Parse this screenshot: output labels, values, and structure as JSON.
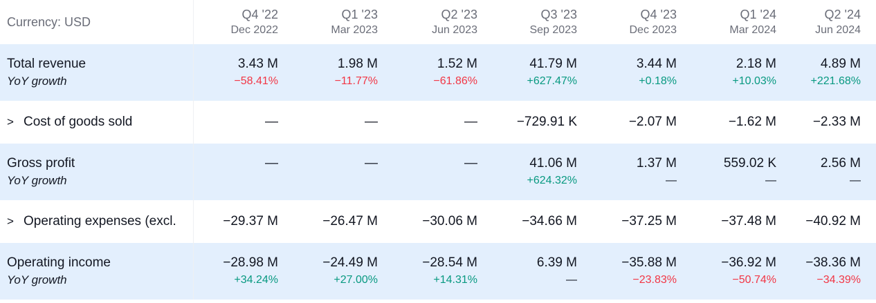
{
  "currency_label": "Currency: USD",
  "periods": [
    {
      "quarter": "Q4 '22",
      "date": "Dec 2022"
    },
    {
      "quarter": "Q1 '23",
      "date": "Mar 2023"
    },
    {
      "quarter": "Q2 '23",
      "date": "Jun 2023"
    },
    {
      "quarter": "Q3 '23",
      "date": "Sep 2023"
    },
    {
      "quarter": "Q4 '23",
      "date": "Dec 2023"
    },
    {
      "quarter": "Q1 '24",
      "date": "Mar 2024"
    },
    {
      "quarter": "Q2 '24",
      "date": "Jun 2024"
    }
  ],
  "expander_glyph": ">",
  "rows": {
    "total_revenue": {
      "label": "Total revenue",
      "sublabel": "YoY growth",
      "values": [
        "3.43 M",
        "1.98 M",
        "1.52 M",
        "41.79 M",
        "3.44 M",
        "2.18 M",
        "4.89 M"
      ],
      "growth": [
        "−58.41%",
        "−11.77%",
        "−61.86%",
        "+627.47%",
        "+0.18%",
        "+10.03%",
        "+221.68%"
      ]
    },
    "cogs": {
      "label": "Cost of goods sold",
      "values": [
        "—",
        "—",
        "—",
        "−729.91 K",
        "−2.07 M",
        "−1.62 M",
        "−2.33 M"
      ]
    },
    "gross_profit": {
      "label": "Gross profit",
      "sublabel": "YoY growth",
      "values": [
        "—",
        "—",
        "—",
        "41.06 M",
        "1.37 M",
        "559.02 K",
        "2.56 M"
      ],
      "growth": [
        "",
        "",
        "",
        "+624.32%",
        "—",
        "—",
        "—"
      ]
    },
    "opex": {
      "label": "Operating expenses (excl.",
      "values": [
        "−29.37 M",
        "−26.47 M",
        "−30.06 M",
        "−34.66 M",
        "−37.25 M",
        "−37.48 M",
        "−40.92 M"
      ]
    },
    "operating_income": {
      "label": "Operating income",
      "sublabel": "YoY growth",
      "values": [
        "−28.98 M",
        "−24.49 M",
        "−28.54 M",
        "6.39 M",
        "−35.88 M",
        "−36.92 M",
        "−38.36 M"
      ],
      "growth": [
        "+34.24%",
        "+27.00%",
        "+14.31%",
        "—",
        "−23.83%",
        "−50.74%",
        "−34.39%"
      ]
    }
  },
  "colors": {
    "positive": "#089981",
    "negative": "#f23645",
    "highlight_row": "#e3effd",
    "muted_text": "#6a6d78"
  }
}
